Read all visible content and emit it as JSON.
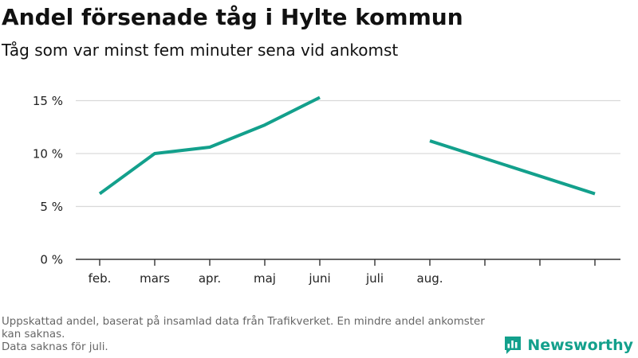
{
  "title": "Andel försenade tåg i Hylte kommun",
  "subtitle": "Tåg som var minst fem minuter sena vid ankomst",
  "footnote": {
    "line1": "Uppskattad andel, baserat på insamlad data från Trafikverket. En mindre andel ankomster kan saknas.",
    "line2": "Data saknas för juli."
  },
  "brand": {
    "name": "Newsworthy",
    "icon": "newsworthy-logo-icon",
    "color": "#13a08c"
  },
  "chart_data": {
    "type": "line",
    "title": "Andel försenade tåg i Hylte kommun",
    "subtitle": "Tåg som var minst fem minuter sena vid ankomst",
    "xlabel": "",
    "ylabel": "",
    "categories": [
      "feb.",
      "mars",
      "apr.",
      "maj",
      "juni",
      "juli",
      "aug.",
      "",
      "",
      ""
    ],
    "series": [
      {
        "name": "",
        "color": "#13a08c",
        "values": [
          6.2,
          10.0,
          10.6,
          12.7,
          15.3,
          null,
          11.2,
          null,
          null,
          6.2
        ]
      }
    ],
    "yticks": [
      0,
      5,
      10,
      15
    ],
    "ytick_labels": [
      "0 %",
      "5 %",
      "10 %",
      "15 %"
    ],
    "ylim": [
      0,
      15
    ],
    "grid": true,
    "legend": "none"
  }
}
